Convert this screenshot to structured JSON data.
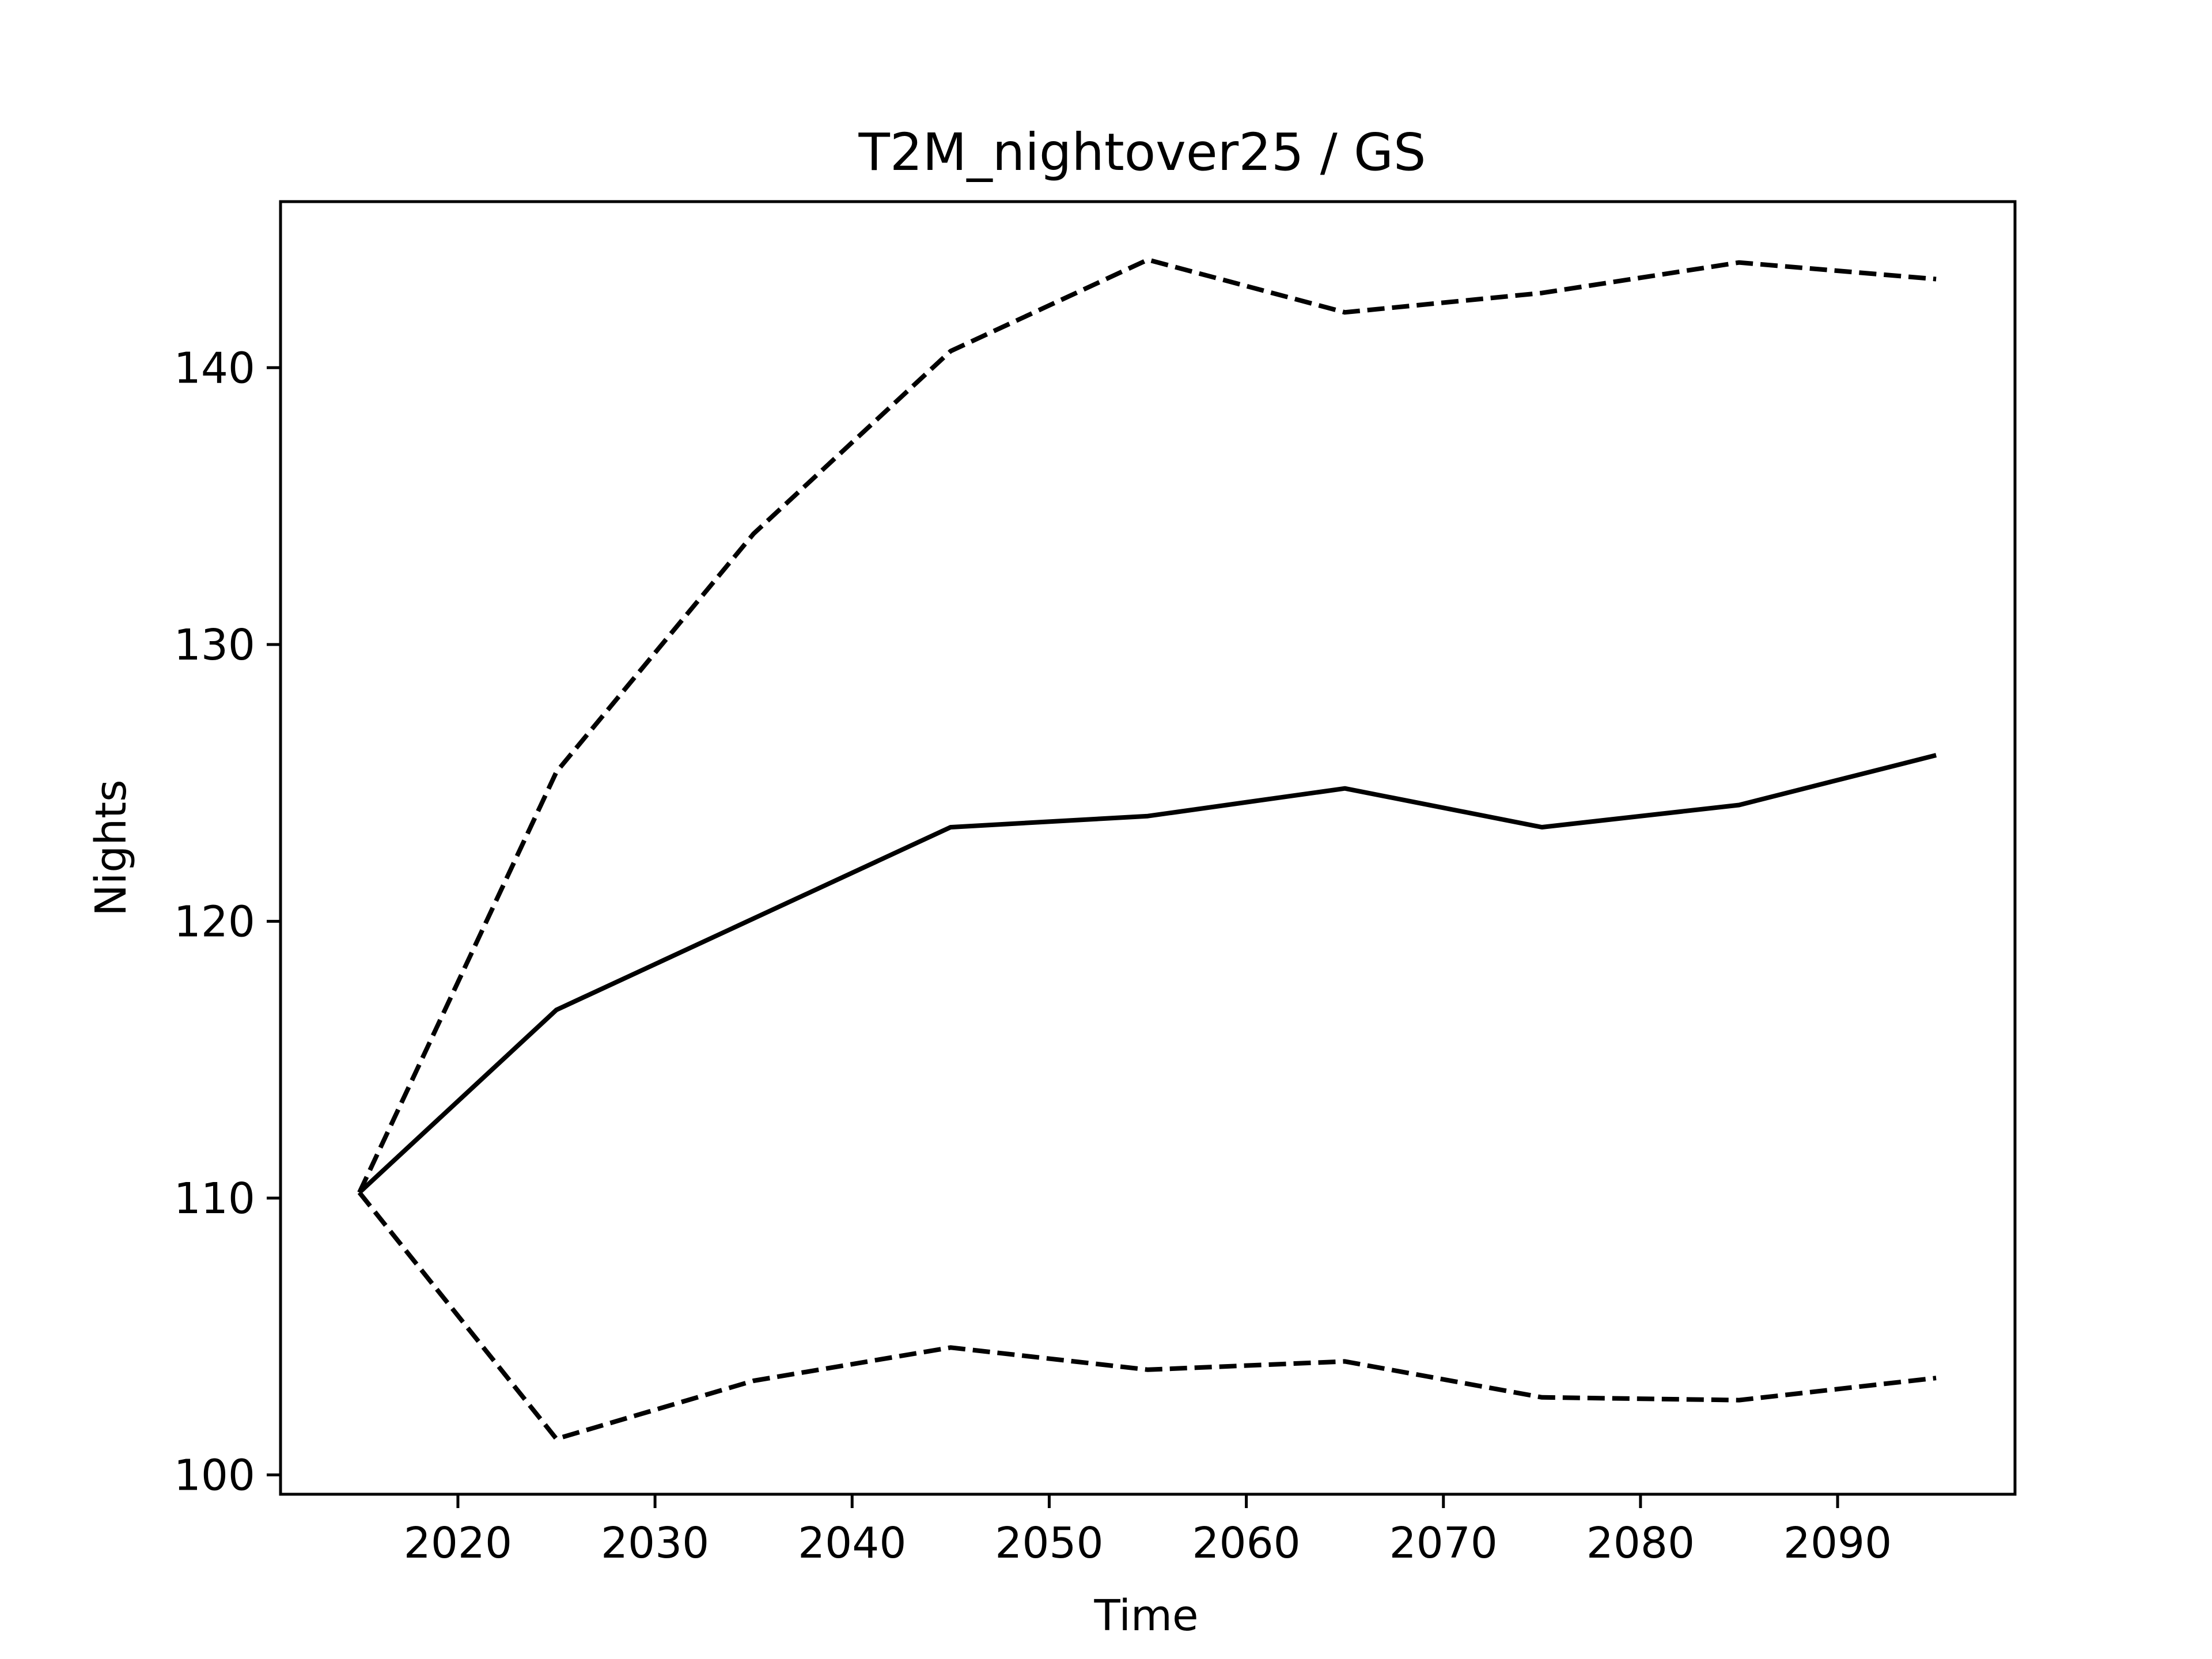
{
  "chart_data": {
    "type": "line",
    "title": "T2M_nightover25 / GS",
    "xlabel": "Time",
    "ylabel": "Nights",
    "xlim": [
      2011,
      2099
    ],
    "ylim": [
      99.3,
      146
    ],
    "xticks": [
      2020,
      2030,
      2040,
      2050,
      2060,
      2070,
      2080,
      2090
    ],
    "yticks": [
      100,
      110,
      120,
      130,
      140
    ],
    "grid": false,
    "x": [
      2015,
      2025,
      2035,
      2045,
      2055,
      2065,
      2075,
      2085,
      2095
    ],
    "series": [
      {
        "style": "solid",
        "color": "#000000",
        "values": [
          110.2,
          116.8,
          120.1,
          123.4,
          123.8,
          124.8,
          123.4,
          124.2,
          126.0
        ]
      },
      {
        "style": "dashed",
        "color": "#000000",
        "values": [
          110.2,
          125.4,
          134.0,
          140.6,
          143.9,
          142.0,
          142.7,
          143.8,
          143.2
        ]
      },
      {
        "style": "dashed",
        "color": "#000000",
        "values": [
          110.2,
          101.3,
          103.4,
          104.6,
          103.8,
          104.1,
          102.8,
          102.7,
          103.5
        ]
      }
    ]
  }
}
